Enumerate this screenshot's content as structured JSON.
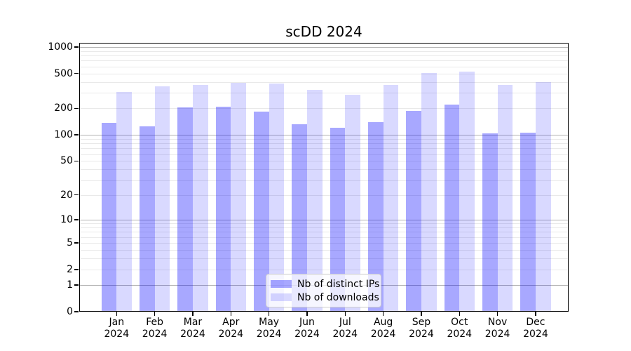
{
  "chart_data": {
    "type": "bar",
    "title": "scDD 2024",
    "categories": [
      "Jan 2024",
      "Feb 2024",
      "Mar 2024",
      "Apr 2024",
      "May 2024",
      "Jun 2024",
      "Jul 2024",
      "Aug 2024",
      "Sep 2024",
      "Oct 2024",
      "Nov 2024",
      "Dec 2024"
    ],
    "series": [
      {
        "name": "Nb of distinct IPs",
        "color": "rgba(0,0,255,0.34)",
        "values": [
          137,
          125,
          204,
          211,
          185,
          131,
          121,
          139,
          188,
          220,
          103,
          106
        ]
      },
      {
        "name": "Nb of downloads",
        "color": "rgba(0,0,255,0.15)",
        "values": [
          309,
          357,
          369,
          390,
          384,
          325,
          287,
          370,
          506,
          527,
          369,
          402
        ]
      }
    ],
    "yscale": "log10(value+1)",
    "yticks": [
      0,
      1,
      2,
      5,
      10,
      20,
      50,
      100,
      200,
      500,
      1000
    ],
    "major_gridline_values": [
      1,
      10,
      100,
      1000
    ],
    "ylim": [
      0,
      1100
    ],
    "grid": true,
    "legend_position": "lower center",
    "xlabel": "",
    "ylabel": ""
  },
  "colors": {
    "background": "#ffffff",
    "distinct_ips_bar": "rgba(0,0,255,0.34)",
    "downloads_bar": "rgba(0,0,255,0.15)",
    "major_gridline": "#b3b3b3",
    "minor_gridline": "#e9e9e9",
    "axis": "#000000",
    "legend_border": "#cccccc"
  }
}
